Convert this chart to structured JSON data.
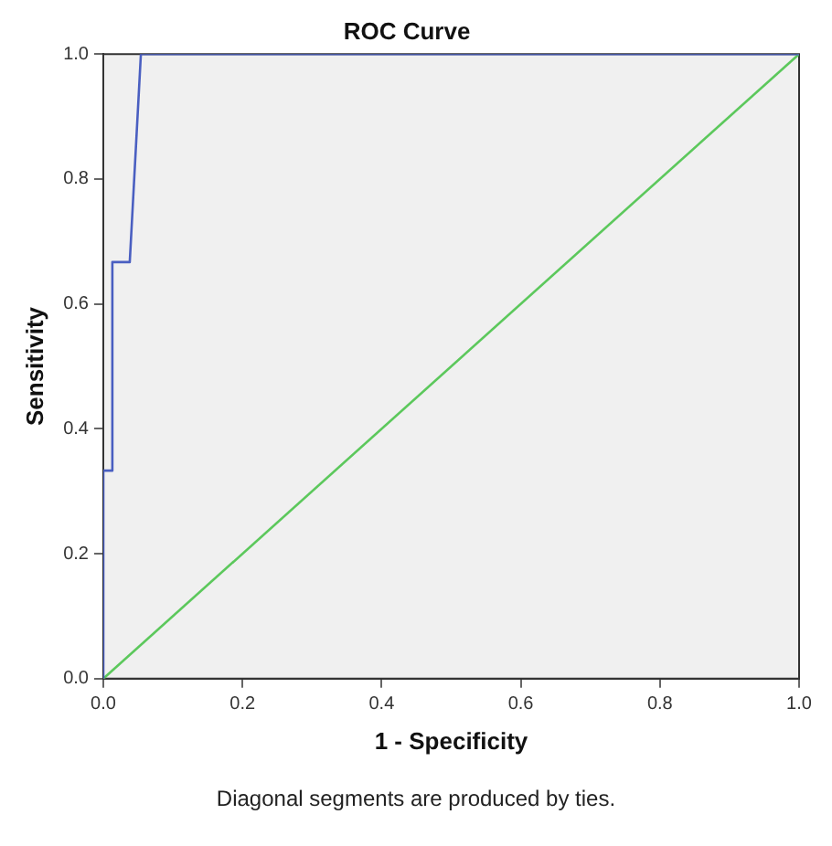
{
  "chart_data": {
    "type": "line",
    "title": "ROC Curve",
    "xlabel": "1 - Specificity",
    "ylabel": "Sensitivity",
    "xlim": [
      0,
      1
    ],
    "ylim": [
      0,
      1
    ],
    "xticks": [
      {
        "value": 0,
        "label": "0.0"
      },
      {
        "value": 0.2,
        "label": "0.2"
      },
      {
        "value": 0.4,
        "label": "0.4"
      },
      {
        "value": 0.6,
        "label": "0.6"
      },
      {
        "value": 0.8,
        "label": "0.8"
      },
      {
        "value": 1,
        "label": "1.0"
      }
    ],
    "yticks": [
      {
        "value": 0,
        "label": "0.0"
      },
      {
        "value": 0.2,
        "label": "0.2"
      },
      {
        "value": 0.4,
        "label": "0.4"
      },
      {
        "value": 0.6,
        "label": "0.6"
      },
      {
        "value": 0.8,
        "label": "0.8"
      },
      {
        "value": 1,
        "label": "1.0"
      }
    ],
    "grid": false,
    "legend": false,
    "marker": "none",
    "line_style": "solid",
    "annotations": [
      "Diagonal segments are produced by ties."
    ],
    "series": [
      {
        "color": "#4a5fc1",
        "x": [
          0,
          0,
          0.013,
          0.013,
          0.038,
          0.054,
          1
        ],
        "values": [
          0,
          0.333,
          0.333,
          0.667,
          0.667,
          1,
          1
        ]
      },
      {
        "color": "#5cc85c",
        "x": [
          0,
          1
        ],
        "values": [
          0,
          1
        ]
      }
    ]
  }
}
